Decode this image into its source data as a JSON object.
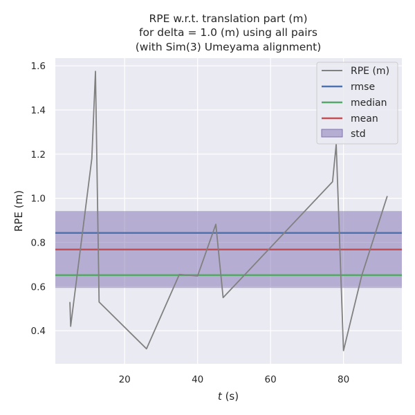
{
  "chart_data": {
    "type": "line",
    "title": [
      "RPE w.r.t. translation part (m)",
      "for delta = 1.0 (m) using all pairs",
      "(with Sim(3) Umeyama alignment)"
    ],
    "xlabel_var": "t",
    "xlabel_unit": " (s)",
    "ylabel": "RPE (m)",
    "xlim": [
      1,
      96
    ],
    "ylim": [
      0.25,
      1.635
    ],
    "xticks": [
      20,
      40,
      60,
      80
    ],
    "yticks": [
      0.4,
      0.6,
      0.8,
      1.0,
      1.2,
      1.4,
      1.6
    ],
    "grid": true,
    "legend_position": "top-right",
    "series": [
      {
        "name": "RPE (m)",
        "color": "#808080",
        "x": [
          5,
          5.2,
          11,
          12,
          13,
          26,
          35,
          40,
          45,
          47,
          77,
          78,
          80,
          85,
          92
        ],
        "y": [
          0.53,
          0.42,
          1.18,
          1.575,
          0.53,
          0.318,
          0.655,
          0.648,
          0.882,
          0.55,
          1.075,
          1.245,
          0.31,
          0.65,
          1.01
        ]
      }
    ],
    "stats": {
      "rmse": {
        "label": "rmse",
        "value": 0.843,
        "color": "#4c72b0"
      },
      "median": {
        "label": "median",
        "value": 0.652,
        "color": "#55a868"
      },
      "mean": {
        "label": "mean",
        "value": 0.768,
        "color": "#c44e52"
      },
      "std": {
        "label": "std",
        "low": 0.594,
        "high": 0.942,
        "color": "#8172b2"
      }
    }
  }
}
